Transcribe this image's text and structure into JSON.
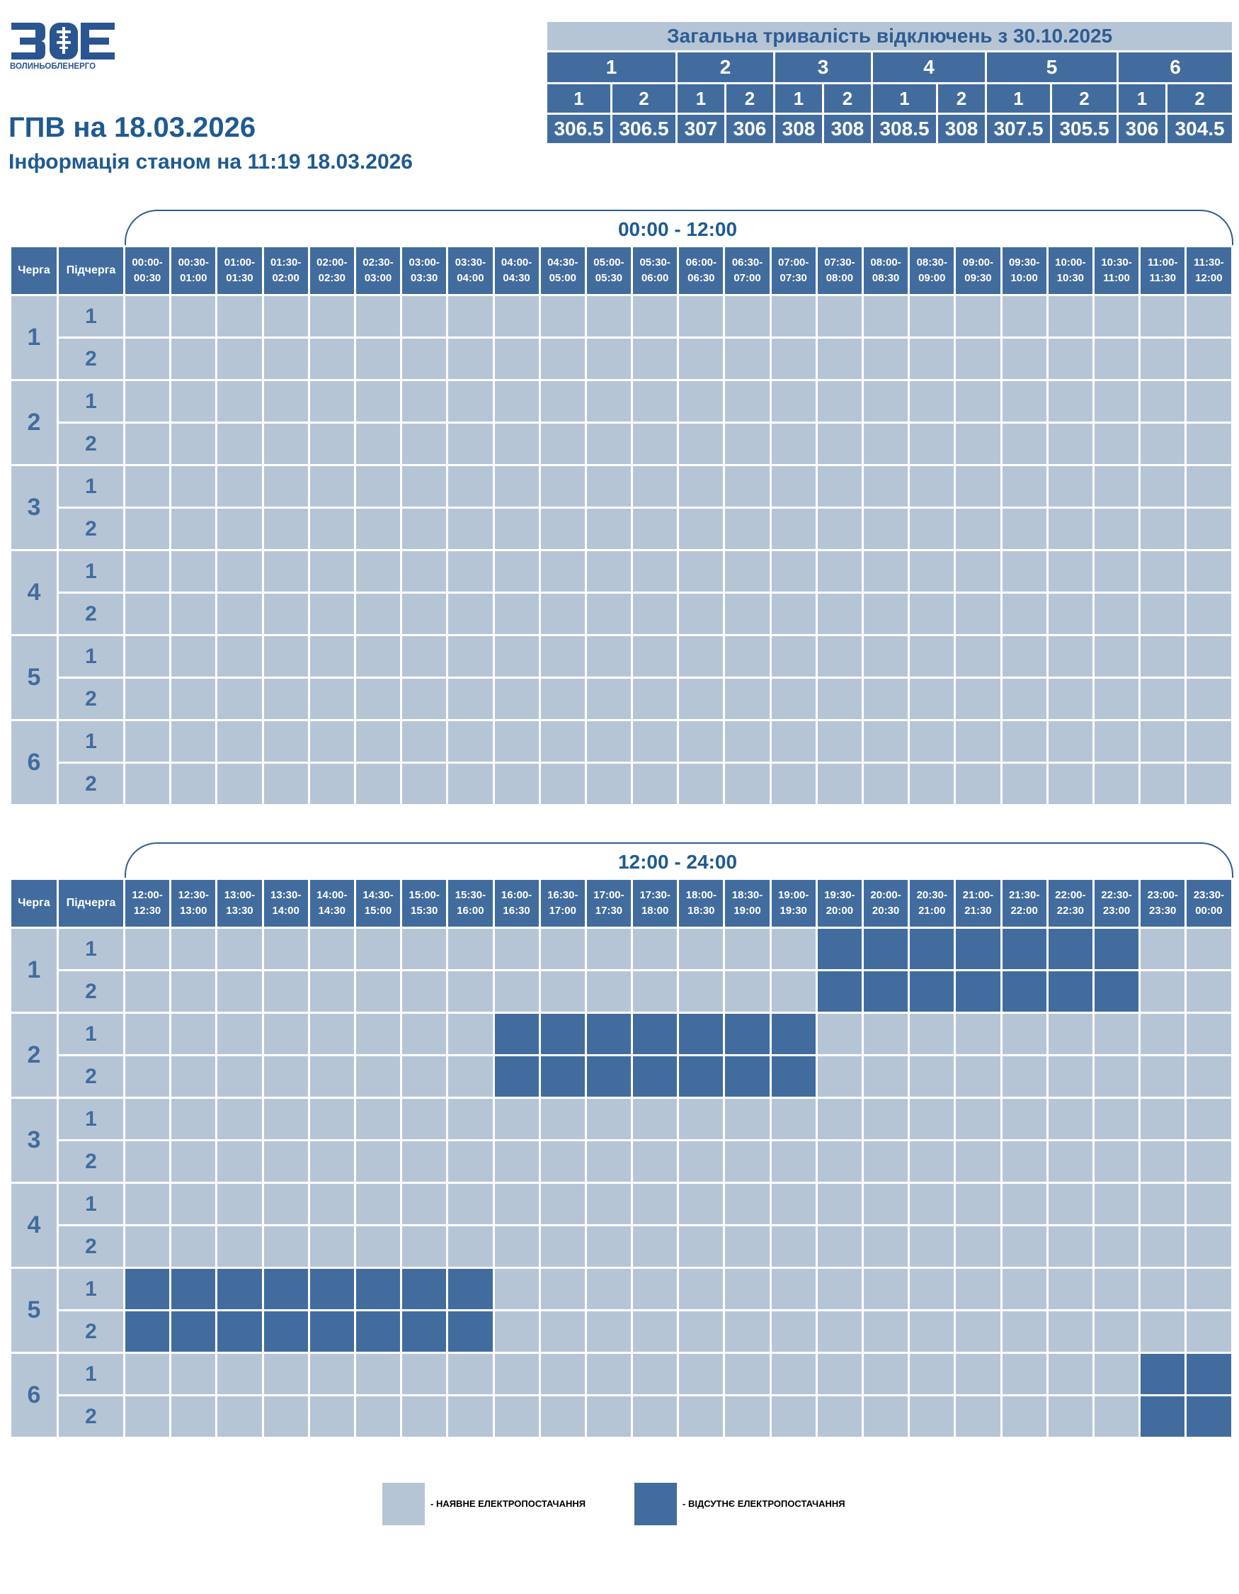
{
  "logo": {
    "name": "ВОЛИНЬОБЛЕНЕРГО",
    "mark": "ВОЕ"
  },
  "header": {
    "title": "ГПВ на 18.03.2026",
    "subtitle": "Інформація станом на 11:19 18.03.2026"
  },
  "summary": {
    "title": "Загальна тривалість відключень з 30.10.2025",
    "queues": [
      "1",
      "2",
      "3",
      "4",
      "5",
      "6"
    ],
    "subqueues": [
      "1",
      "2",
      "1",
      "2",
      "1",
      "2",
      "1",
      "2",
      "1",
      "2",
      "1",
      "2"
    ],
    "values": [
      "306.5",
      "306.5",
      "307",
      "306",
      "308",
      "308",
      "308.5",
      "308",
      "307.5",
      "305.5",
      "306",
      "304.5"
    ]
  },
  "headers": {
    "queue": "Черга",
    "subqueue": "Підчерга"
  },
  "periods": [
    {
      "label": "00:00 - 12:00",
      "slots": [
        "00:00-00:30",
        "00:30-01:00",
        "01:00-01:30",
        "01:30-02:00",
        "02:00-02:30",
        "02:30-03:00",
        "03:00-03:30",
        "03:30-04:00",
        "04:00-04:30",
        "04:30-05:00",
        "05:00-05:30",
        "05:30-06:00",
        "06:00-06:30",
        "06:30-07:00",
        "07:00-07:30",
        "07:30-08:00",
        "08:00-08:30",
        "08:30-09:00",
        "09:00-09:30",
        "09:30-10:00",
        "10:00-10:30",
        "10:30-11:00",
        "11:00-11:30",
        "11:30-12:00"
      ],
      "rows": [
        {
          "queue": "1",
          "subqueue": "1",
          "off": []
        },
        {
          "queue": "1",
          "subqueue": "2",
          "off": []
        },
        {
          "queue": "2",
          "subqueue": "1",
          "off": []
        },
        {
          "queue": "2",
          "subqueue": "2",
          "off": []
        },
        {
          "queue": "3",
          "subqueue": "1",
          "off": []
        },
        {
          "queue": "3",
          "subqueue": "2",
          "off": []
        },
        {
          "queue": "4",
          "subqueue": "1",
          "off": []
        },
        {
          "queue": "4",
          "subqueue": "2",
          "off": []
        },
        {
          "queue": "5",
          "subqueue": "1",
          "off": []
        },
        {
          "queue": "5",
          "subqueue": "2",
          "off": []
        },
        {
          "queue": "6",
          "subqueue": "1",
          "off": []
        },
        {
          "queue": "6",
          "subqueue": "2",
          "off": []
        }
      ]
    },
    {
      "label": "12:00 - 24:00",
      "slots": [
        "12:00-12:30",
        "12:30-13:00",
        "13:00-13:30",
        "13:30-14:00",
        "14:00-14:30",
        "14:30-15:00",
        "15:00-15:30",
        "15:30-16:00",
        "16:00-16:30",
        "16:30-17:00",
        "17:00-17:30",
        "17:30-18:00",
        "18:00-18:30",
        "18:30-19:00",
        "19:00-19:30",
        "19:30-20:00",
        "20:00-20:30",
        "20:30-21:00",
        "21:00-21:30",
        "21:30-22:00",
        "22:00-22:30",
        "22:30-23:00",
        "23:00-23:30",
        "23:30-00:00"
      ],
      "rows": [
        {
          "queue": "1",
          "subqueue": "1",
          "off": [
            15,
            16,
            17,
            18,
            19,
            20,
            21
          ]
        },
        {
          "queue": "1",
          "subqueue": "2",
          "off": [
            15,
            16,
            17,
            18,
            19,
            20,
            21
          ]
        },
        {
          "queue": "2",
          "subqueue": "1",
          "off": [
            8,
            9,
            10,
            11,
            12,
            13,
            14
          ]
        },
        {
          "queue": "2",
          "subqueue": "2",
          "off": [
            8,
            9,
            10,
            11,
            12,
            13,
            14
          ]
        },
        {
          "queue": "3",
          "subqueue": "1",
          "off": []
        },
        {
          "queue": "3",
          "subqueue": "2",
          "off": []
        },
        {
          "queue": "4",
          "subqueue": "1",
          "off": []
        },
        {
          "queue": "4",
          "subqueue": "2",
          "off": []
        },
        {
          "queue": "5",
          "subqueue": "1",
          "off": [
            0,
            1,
            2,
            3,
            4,
            5,
            6,
            7
          ]
        },
        {
          "queue": "5",
          "subqueue": "2",
          "off": [
            0,
            1,
            2,
            3,
            4,
            5,
            6,
            7
          ]
        },
        {
          "queue": "6",
          "subqueue": "1",
          "off": [
            22,
            23
          ]
        },
        {
          "queue": "6",
          "subqueue": "2",
          "off": [
            22,
            23
          ]
        }
      ]
    }
  ],
  "legend": {
    "available": "- НАЯВНЕ ЕЛЕКТРОПОСТАЧАННЯ",
    "absent": "- ВІДСУТНЄ ЕЛЕКТРОПОСТАЧАННЯ"
  },
  "colors": {
    "available": "#b6c5d6",
    "absent": "#426c9d",
    "title": "#1f5a92"
  }
}
